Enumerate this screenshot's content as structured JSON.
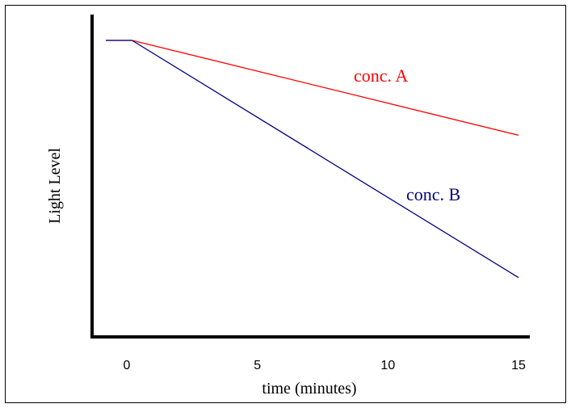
{
  "chart_data": {
    "type": "line",
    "xlabel": "time (minutes)",
    "ylabel": "Light Level",
    "xlim": [
      -1,
      15
    ],
    "ylim": [
      0,
      10
    ],
    "x_ticks": [
      0,
      5,
      10,
      15
    ],
    "x_tick_labels": [
      "0",
      "5",
      "10",
      "15"
    ],
    "grid": false,
    "series": [
      {
        "name": "conc. A",
        "color": "#ff0000",
        "x": [
          -0.8,
          0.2,
          15
        ],
        "y": [
          10,
          10,
          6.8
        ]
      },
      {
        "name": "conc. B",
        "color": "#000080",
        "x": [
          -0.8,
          0.2,
          15
        ],
        "y": [
          10,
          10,
          2.0
        ]
      }
    ],
    "annotations": [
      {
        "text": "conc. A",
        "series": 0
      },
      {
        "text": "conc. B",
        "series": 1
      }
    ]
  }
}
